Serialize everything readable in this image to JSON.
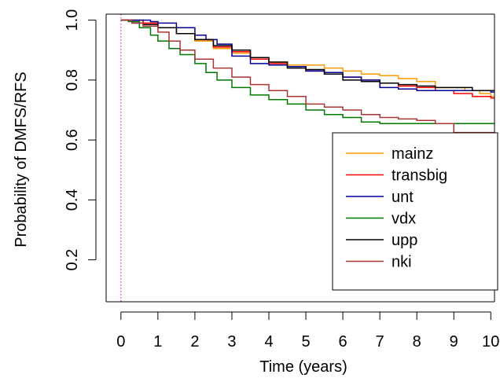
{
  "chart_data": {
    "type": "line",
    "title": "",
    "xlabel": "Time (years)",
    "ylabel": "Probability of DMFS/RFS",
    "xlim": [
      -0.4,
      10.1
    ],
    "ylim": [
      0.06,
      1.02
    ],
    "x_ticks": [
      0,
      1,
      2,
      3,
      4,
      5,
      6,
      7,
      8,
      9,
      10
    ],
    "x_tick_labels": [
      "0",
      "1",
      "2",
      "3",
      "4",
      "5",
      "6",
      "7",
      "8",
      "9",
      "10"
    ],
    "y_ticks": [
      0.2,
      0.4,
      0.6,
      0.8,
      1.0
    ],
    "y_tick_labels": [
      "0.2",
      "0.4",
      "0.6",
      "0.8",
      "1.0"
    ],
    "grid": false,
    "legend_position": "bottom-right",
    "vline": {
      "x": 0,
      "color": "#cc33cc",
      "style": "dotted"
    },
    "series": [
      {
        "name": "mainz",
        "color": "#ff9900",
        "points": [
          [
            0,
            1.0
          ],
          [
            0.3,
            1.0
          ],
          [
            0.6,
            0.99
          ],
          [
            1.0,
            0.975
          ],
          [
            1.5,
            0.955
          ],
          [
            2.0,
            0.93
          ],
          [
            2.5,
            0.905
          ],
          [
            3.0,
            0.89
          ],
          [
            3.5,
            0.87
          ],
          [
            4.0,
            0.86
          ],
          [
            4.5,
            0.85
          ],
          [
            5.0,
            0.85
          ],
          [
            5.5,
            0.84
          ],
          [
            6.0,
            0.83
          ],
          [
            6.5,
            0.82
          ],
          [
            7.0,
            0.815
          ],
          [
            7.5,
            0.805
          ],
          [
            8.0,
            0.795
          ],
          [
            8.5,
            0.775
          ],
          [
            9.0,
            0.775
          ],
          [
            9.3,
            0.765
          ],
          [
            9.7,
            0.755
          ],
          [
            10.0,
            0.745
          ],
          [
            10.1,
            0.745
          ]
        ]
      },
      {
        "name": "transbig",
        "color": "#ff0000",
        "points": [
          [
            0,
            1.0
          ],
          [
            0.3,
            1.0
          ],
          [
            0.6,
            0.99
          ],
          [
            1.0,
            0.975
          ],
          [
            1.5,
            0.955
          ],
          [
            2.0,
            0.935
          ],
          [
            2.5,
            0.91
          ],
          [
            3.0,
            0.895
          ],
          [
            3.5,
            0.87
          ],
          [
            4.0,
            0.855
          ],
          [
            4.5,
            0.845
          ],
          [
            5.0,
            0.83
          ],
          [
            5.5,
            0.82
          ],
          [
            6.0,
            0.81
          ],
          [
            6.5,
            0.8
          ],
          [
            7.0,
            0.79
          ],
          [
            7.5,
            0.78
          ],
          [
            8.0,
            0.775
          ],
          [
            8.5,
            0.765
          ],
          [
            9.0,
            0.755
          ],
          [
            9.5,
            0.745
          ],
          [
            10.0,
            0.74
          ],
          [
            10.1,
            0.74
          ]
        ]
      },
      {
        "name": "unt",
        "color": "#000099",
        "points": [
          [
            0,
            1.0
          ],
          [
            0.4,
            1.0
          ],
          [
            0.8,
            0.995
          ],
          [
            1.0,
            0.99
          ],
          [
            1.5,
            0.975
          ],
          [
            2.0,
            0.95
          ],
          [
            2.3,
            0.935
          ],
          [
            2.6,
            0.92
          ],
          [
            3.0,
            0.88
          ],
          [
            3.5,
            0.855
          ],
          [
            4.0,
            0.85
          ],
          [
            4.5,
            0.845
          ],
          [
            5.0,
            0.83
          ],
          [
            5.5,
            0.825
          ],
          [
            6.0,
            0.81
          ],
          [
            6.5,
            0.8
          ],
          [
            7.0,
            0.775
          ],
          [
            7.5,
            0.77
          ],
          [
            8.0,
            0.765
          ],
          [
            8.5,
            0.765
          ],
          [
            9.0,
            0.765
          ],
          [
            9.5,
            0.765
          ],
          [
            10.0,
            0.76
          ],
          [
            10.1,
            0.76
          ]
        ]
      },
      {
        "name": "vdx",
        "color": "#007700",
        "points": [
          [
            0,
            1.0
          ],
          [
            0.2,
            0.995
          ],
          [
            0.5,
            0.975
          ],
          [
            0.8,
            0.95
          ],
          [
            1.0,
            0.93
          ],
          [
            1.3,
            0.905
          ],
          [
            1.6,
            0.885
          ],
          [
            2.0,
            0.855
          ],
          [
            2.3,
            0.825
          ],
          [
            2.6,
            0.8
          ],
          [
            3.0,
            0.775
          ],
          [
            3.5,
            0.75
          ],
          [
            4.0,
            0.735
          ],
          [
            4.5,
            0.72
          ],
          [
            5.0,
            0.7
          ],
          [
            5.5,
            0.685
          ],
          [
            6.0,
            0.675
          ],
          [
            6.5,
            0.66
          ],
          [
            7.0,
            0.655
          ],
          [
            7.5,
            0.655
          ],
          [
            8.0,
            0.655
          ],
          [
            9.0,
            0.655
          ],
          [
            10.0,
            0.655
          ],
          [
            10.1,
            0.655
          ]
        ]
      },
      {
        "name": "upp",
        "color": "#000000",
        "points": [
          [
            0,
            1.0
          ],
          [
            0.3,
            0.99
          ],
          [
            0.6,
            0.985
          ],
          [
            1.0,
            0.975
          ],
          [
            1.5,
            0.955
          ],
          [
            2.0,
            0.935
          ],
          [
            2.5,
            0.915
          ],
          [
            3.0,
            0.9
          ],
          [
            3.5,
            0.875
          ],
          [
            4.0,
            0.86
          ],
          [
            4.5,
            0.84
          ],
          [
            5.0,
            0.835
          ],
          [
            5.5,
            0.82
          ],
          [
            6.0,
            0.8
          ],
          [
            6.5,
            0.795
          ],
          [
            7.0,
            0.79
          ],
          [
            7.5,
            0.785
          ],
          [
            8.0,
            0.78
          ],
          [
            8.5,
            0.775
          ],
          [
            9.0,
            0.775
          ],
          [
            9.5,
            0.765
          ],
          [
            10.0,
            0.765
          ],
          [
            10.1,
            0.765
          ]
        ]
      },
      {
        "name": "nki",
        "color": "#aa3333",
        "points": [
          [
            0,
            1.0
          ],
          [
            0.3,
            0.99
          ],
          [
            0.6,
            0.98
          ],
          [
            1.0,
            0.96
          ],
          [
            1.3,
            0.93
          ],
          [
            1.6,
            0.9
          ],
          [
            2.0,
            0.87
          ],
          [
            2.5,
            0.84
          ],
          [
            3.0,
            0.81
          ],
          [
            3.5,
            0.785
          ],
          [
            4.0,
            0.765
          ],
          [
            4.5,
            0.745
          ],
          [
            5.0,
            0.72
          ],
          [
            5.5,
            0.71
          ],
          [
            6.0,
            0.7
          ],
          [
            6.5,
            0.685
          ],
          [
            7.0,
            0.675
          ],
          [
            7.5,
            0.67
          ],
          [
            8.0,
            0.665
          ],
          [
            8.5,
            0.655
          ],
          [
            9.0,
            0.625
          ],
          [
            9.5,
            0.625
          ],
          [
            10.0,
            0.625
          ],
          [
            10.1,
            0.625
          ]
        ]
      }
    ]
  }
}
